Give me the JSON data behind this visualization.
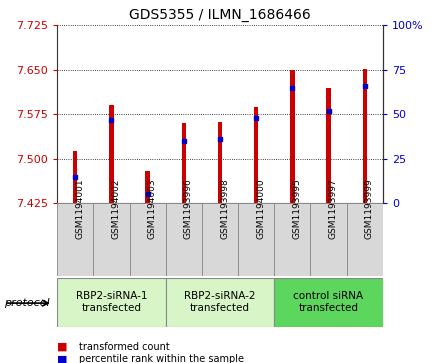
{
  "title": "GDS5355 / ILMN_1686466",
  "samples": [
    "GSM1194001",
    "GSM1194002",
    "GSM1194003",
    "GSM1193996",
    "GSM1193998",
    "GSM1194000",
    "GSM1193995",
    "GSM1193997",
    "GSM1193999"
  ],
  "red_values": [
    7.513,
    7.59,
    7.48,
    7.56,
    7.562,
    7.587,
    7.65,
    7.62,
    7.652
  ],
  "blue_values": [
    15,
    47,
    5,
    35,
    36,
    48,
    65,
    52,
    66
  ],
  "ylim_left": [
    7.425,
    7.725
  ],
  "ylim_right": [
    0,
    100
  ],
  "yticks_left": [
    7.425,
    7.5,
    7.575,
    7.65,
    7.725
  ],
  "yticks_right": [
    0,
    25,
    50,
    75,
    100
  ],
  "groups": [
    {
      "label": "RBP2-siRNA-1\ntransfected",
      "start": 0,
      "end": 3,
      "color": "#d8f5c8"
    },
    {
      "label": "RBP2-siRNA-2\ntransfected",
      "start": 3,
      "end": 6,
      "color": "#d8f5c8"
    },
    {
      "label": "control siRNA\ntransfected",
      "start": 6,
      "end": 9,
      "color": "#5cd65c"
    }
  ],
  "bar_color": "#cc0000",
  "blue_color": "#0000cc",
  "base_value": 7.425,
  "bar_width": 0.12,
  "left_tick_color": "#cc0000",
  "right_tick_color": "#0000cc",
  "legend_red": "transformed count",
  "legend_blue": "percentile rank within the sample",
  "protocol_label": "protocol",
  "sample_box_color": "#d8d8d8",
  "sample_box_edge": "#888888",
  "group_edge_color": "#888888"
}
